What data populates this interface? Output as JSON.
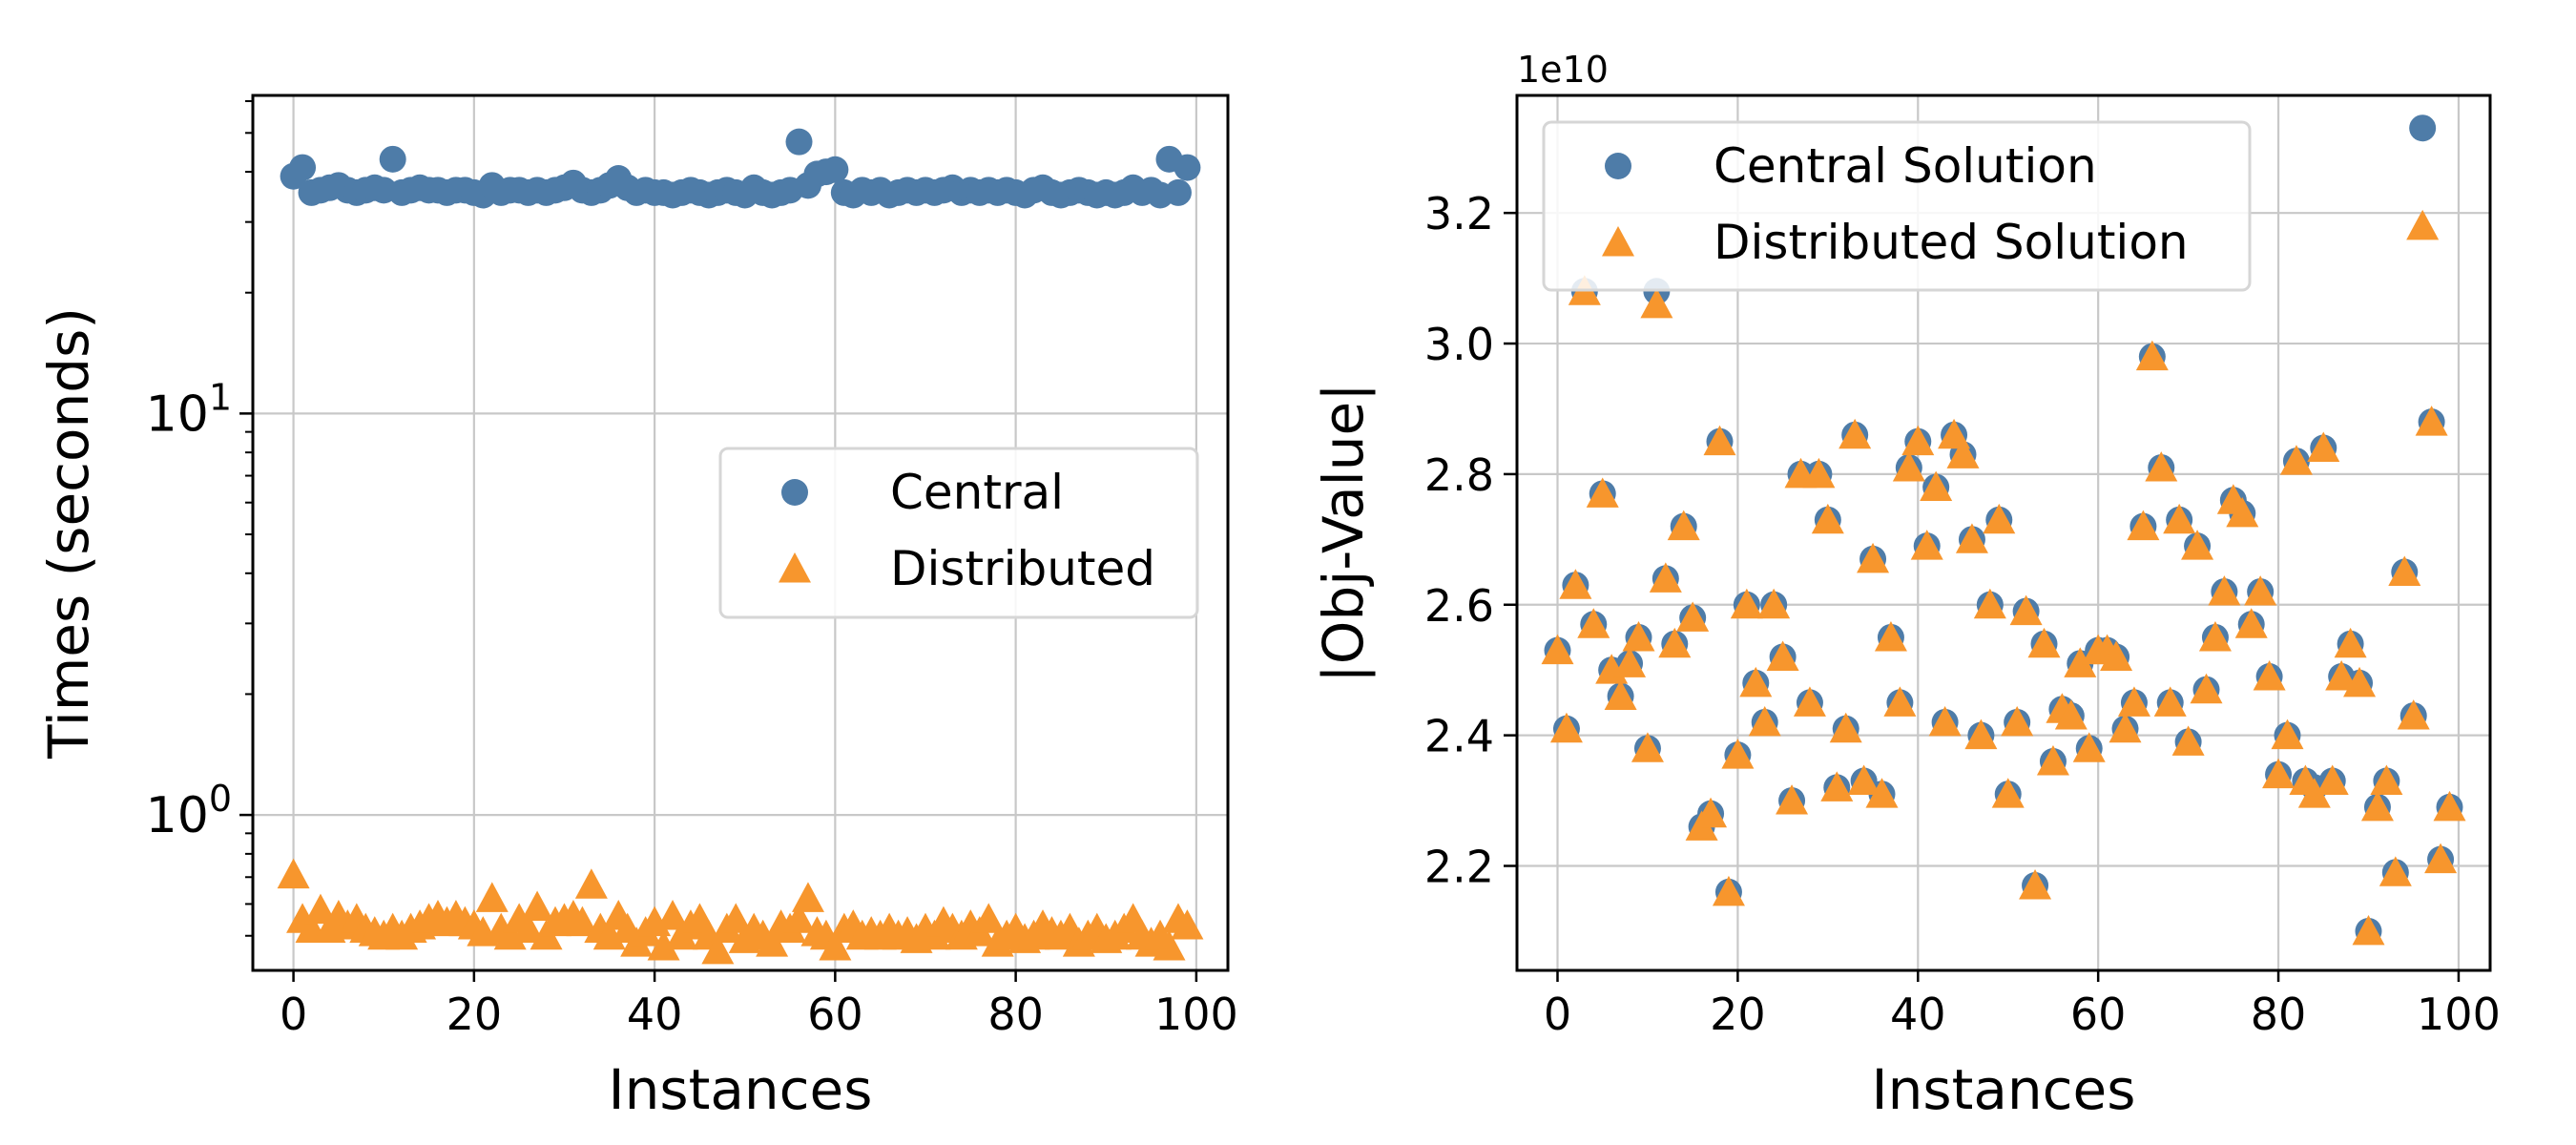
{
  "colors": {
    "central": "#4e7ca8",
    "distributed": "#f7962d"
  },
  "chart_data": [
    {
      "type": "scatter",
      "xlabel": "Instances",
      "ylabel": "Times (seconds)",
      "yscale": "log",
      "xlim": [
        -4.5,
        103.5
      ],
      "ylim": [
        0.41,
        62
      ],
      "xticks": [
        0,
        20,
        40,
        60,
        80,
        100
      ],
      "xtick_labels": [
        "0",
        "20",
        "40",
        "60",
        "80",
        "100"
      ],
      "yticks": [
        1,
        10
      ],
      "ytick_labels": [
        {
          "base": "10",
          "exp": "0"
        },
        {
          "base": "10",
          "exp": "1"
        }
      ],
      "grid": true,
      "legend_position": "center-right",
      "legend": [
        {
          "label": "Central",
          "marker": "circle",
          "color_key": "central"
        },
        {
          "label": "Distributed",
          "marker": "triangle",
          "color_key": "distributed"
        }
      ],
      "series": [
        {
          "name": "Central",
          "marker": "circle",
          "color_key": "central",
          "x": [
            0,
            1,
            2,
            3,
            4,
            5,
            6,
            7,
            8,
            9,
            10,
            11,
            12,
            13,
            14,
            15,
            16,
            17,
            18,
            19,
            20,
            21,
            22,
            23,
            24,
            25,
            26,
            27,
            28,
            29,
            30,
            31,
            32,
            33,
            34,
            35,
            36,
            37,
            38,
            39,
            40,
            41,
            42,
            43,
            44,
            45,
            46,
            47,
            48,
            49,
            50,
            51,
            52,
            53,
            54,
            55,
            56,
            57,
            58,
            59,
            60,
            61,
            62,
            63,
            64,
            65,
            66,
            67,
            68,
            69,
            70,
            71,
            72,
            73,
            74,
            75,
            76,
            77,
            78,
            79,
            80,
            81,
            82,
            83,
            84,
            85,
            86,
            87,
            88,
            89,
            90,
            91,
            92,
            93,
            94,
            95,
            96,
            97,
            98,
            99
          ],
          "y": [
            39,
            41,
            35.5,
            36,
            36.5,
            37,
            36,
            35.5,
            36,
            36.5,
            36,
            43,
            35.5,
            36,
            36.5,
            36,
            36,
            35.5,
            36,
            36,
            35.5,
            35,
            37,
            35.5,
            36,
            36,
            35.5,
            36,
            35.5,
            36,
            36.5,
            37.5,
            36,
            35.5,
            36,
            37,
            38.5,
            36.5,
            35.5,
            36,
            35.5,
            35.5,
            35,
            35.5,
            36,
            35.5,
            35,
            35.5,
            36,
            35.5,
            35,
            36.5,
            35.5,
            35,
            35.5,
            36,
            47.5,
            37,
            39.5,
            40,
            40.5,
            35.5,
            35,
            36,
            35.5,
            36,
            35,
            35.5,
            36,
            35.5,
            36,
            35.5,
            36,
            36.5,
            35.5,
            36,
            35.5,
            36,
            35.5,
            36,
            35.5,
            35,
            36,
            36.5,
            35.5,
            35,
            35.5,
            36,
            35.5,
            35,
            35.5,
            35,
            35.5,
            36.5,
            35.5,
            36,
            35,
            43,
            35.5,
            41
          ]
        },
        {
          "name": "Distributed",
          "marker": "triangle",
          "color_key": "distributed",
          "x": [
            0,
            1,
            2,
            3,
            4,
            5,
            6,
            7,
            8,
            9,
            10,
            11,
            12,
            13,
            14,
            15,
            16,
            17,
            18,
            19,
            20,
            21,
            22,
            23,
            24,
            25,
            26,
            27,
            28,
            29,
            30,
            31,
            32,
            33,
            34,
            35,
            36,
            37,
            38,
            39,
            40,
            41,
            42,
            43,
            44,
            45,
            46,
            47,
            48,
            49,
            50,
            51,
            52,
            53,
            54,
            55,
            56,
            57,
            58,
            59,
            60,
            61,
            62,
            63,
            64,
            65,
            66,
            67,
            68,
            69,
            70,
            71,
            72,
            73,
            74,
            75,
            76,
            77,
            78,
            79,
            80,
            81,
            82,
            83,
            84,
            85,
            86,
            87,
            88,
            89,
            90,
            91,
            92,
            93,
            94,
            95,
            96,
            97,
            98,
            99
          ],
          "y": [
            0.71,
            0.55,
            0.52,
            0.58,
            0.52,
            0.56,
            0.53,
            0.55,
            0.52,
            0.51,
            0.5,
            0.52,
            0.5,
            0.52,
            0.53,
            0.55,
            0.56,
            0.54,
            0.56,
            0.54,
            0.53,
            0.51,
            0.62,
            0.52,
            0.5,
            0.55,
            0.52,
            0.59,
            0.5,
            0.54,
            0.55,
            0.56,
            0.54,
            0.67,
            0.52,
            0.5,
            0.56,
            0.52,
            0.48,
            0.51,
            0.54,
            0.47,
            0.56,
            0.5,
            0.53,
            0.55,
            0.5,
            0.46,
            0.52,
            0.55,
            0.49,
            0.52,
            0.5,
            0.48,
            0.53,
            0.52,
            0.55,
            0.62,
            0.51,
            0.5,
            0.47,
            0.52,
            0.53,
            0.5,
            0.51,
            0.5,
            0.52,
            0.5,
            0.51,
            0.49,
            0.52,
            0.5,
            0.54,
            0.52,
            0.5,
            0.53,
            0.51,
            0.55,
            0.48,
            0.5,
            0.52,
            0.49,
            0.5,
            0.53,
            0.51,
            0.5,
            0.52,
            0.48,
            0.5,
            0.52,
            0.49,
            0.5,
            0.52,
            0.55,
            0.5,
            0.48,
            0.5,
            0.47,
            0.55,
            0.53
          ]
        }
      ]
    },
    {
      "type": "scatter",
      "xlabel": "Instances",
      "ylabel": "|Obj-Value|",
      "offset_text": "1e10",
      "xlim": [
        -4.5,
        103.5
      ],
      "ylim": [
        2.04,
        3.38
      ],
      "xticks": [
        0,
        20,
        40,
        60,
        80,
        100
      ],
      "xtick_labels": [
        "0",
        "20",
        "40",
        "60",
        "80",
        "100"
      ],
      "yticks": [
        2.2,
        2.4,
        2.6,
        2.8,
        3.0,
        3.2
      ],
      "ytick_labels": [
        "2.2",
        "2.4",
        "2.6",
        "2.8",
        "3.0",
        "3.2"
      ],
      "grid": true,
      "legend_position": "upper-left",
      "legend": [
        {
          "label": "Central Solution",
          "marker": "circle",
          "color_key": "central"
        },
        {
          "label": "Distributed Solution",
          "marker": "triangle",
          "color_key": "distributed"
        }
      ],
      "series": [
        {
          "name": "Central Solution",
          "marker": "circle",
          "color_key": "central",
          "x": [
            0,
            1,
            2,
            3,
            4,
            5,
            6,
            7,
            8,
            9,
            10,
            11,
            12,
            13,
            14,
            15,
            16,
            17,
            18,
            19,
            20,
            21,
            22,
            23,
            24,
            25,
            26,
            27,
            28,
            29,
            30,
            31,
            32,
            33,
            34,
            35,
            36,
            37,
            38,
            39,
            40,
            41,
            42,
            43,
            44,
            45,
            46,
            47,
            48,
            49,
            50,
            51,
            52,
            53,
            54,
            55,
            56,
            57,
            58,
            59,
            60,
            61,
            62,
            63,
            64,
            65,
            66,
            67,
            68,
            69,
            70,
            71,
            72,
            73,
            74,
            75,
            76,
            77,
            78,
            79,
            80,
            81,
            82,
            83,
            84,
            85,
            86,
            87,
            88,
            89,
            90,
            91,
            92,
            93,
            94,
            95,
            96,
            97,
            98,
            99
          ],
          "y": [
            2.53,
            2.41,
            2.63,
            3.08,
            2.57,
            2.77,
            2.5,
            2.46,
            2.51,
            2.55,
            2.38,
            3.08,
            2.64,
            2.54,
            2.72,
            2.58,
            2.26,
            2.28,
            2.85,
            2.16,
            2.37,
            2.6,
            2.48,
            2.42,
            2.6,
            2.52,
            2.3,
            2.8,
            2.45,
            2.8,
            2.73,
            2.32,
            2.41,
            2.86,
            2.33,
            2.67,
            2.31,
            2.55,
            2.45,
            2.81,
            2.85,
            2.69,
            2.78,
            2.42,
            2.86,
            2.83,
            2.7,
            2.4,
            2.6,
            2.73,
            2.31,
            2.42,
            2.59,
            2.17,
            2.54,
            2.36,
            2.44,
            2.43,
            2.51,
            2.38,
            2.53,
            2.53,
            2.52,
            2.41,
            2.45,
            2.72,
            2.98,
            2.81,
            2.45,
            2.73,
            2.39,
            2.69,
            2.47,
            2.55,
            2.62,
            2.76,
            2.74,
            2.57,
            2.62,
            2.49,
            2.34,
            2.4,
            2.82,
            2.33,
            2.32,
            2.84,
            2.33,
            2.49,
            2.54,
            2.48,
            2.1,
            2.29,
            2.33,
            2.19,
            2.65,
            2.43,
            3.33,
            2.88,
            2.21,
            2.29
          ]
        },
        {
          "name": "Distributed Solution",
          "marker": "triangle",
          "color_key": "distributed",
          "x": [
            0,
            1,
            2,
            3,
            4,
            5,
            6,
            7,
            8,
            9,
            10,
            11,
            12,
            13,
            14,
            15,
            16,
            17,
            18,
            19,
            20,
            21,
            22,
            23,
            24,
            25,
            26,
            27,
            28,
            29,
            30,
            31,
            32,
            33,
            34,
            35,
            36,
            37,
            38,
            39,
            40,
            41,
            42,
            43,
            44,
            45,
            46,
            47,
            48,
            49,
            50,
            51,
            52,
            53,
            54,
            55,
            56,
            57,
            58,
            59,
            60,
            61,
            62,
            63,
            64,
            65,
            66,
            67,
            68,
            69,
            70,
            71,
            72,
            73,
            74,
            75,
            76,
            77,
            78,
            79,
            80,
            81,
            82,
            83,
            84,
            85,
            86,
            87,
            88,
            89,
            90,
            91,
            92,
            93,
            94,
            95,
            96,
            97,
            98,
            99
          ],
          "y": [
            2.53,
            2.41,
            2.63,
            3.08,
            2.57,
            2.77,
            2.5,
            2.46,
            2.51,
            2.55,
            2.38,
            3.06,
            2.64,
            2.54,
            2.72,
            2.58,
            2.26,
            2.28,
            2.85,
            2.16,
            2.37,
            2.6,
            2.48,
            2.42,
            2.6,
            2.52,
            2.3,
            2.8,
            2.45,
            2.8,
            2.73,
            2.32,
            2.41,
            2.86,
            2.33,
            2.67,
            2.31,
            2.55,
            2.45,
            2.81,
            2.85,
            2.69,
            2.78,
            2.42,
            2.86,
            2.83,
            2.7,
            2.4,
            2.6,
            2.73,
            2.31,
            2.42,
            2.59,
            2.17,
            2.54,
            2.36,
            2.44,
            2.43,
            2.51,
            2.38,
            2.53,
            2.53,
            2.52,
            2.41,
            2.45,
            2.72,
            2.98,
            2.81,
            2.45,
            2.73,
            2.39,
            2.69,
            2.47,
            2.55,
            2.62,
            2.76,
            2.74,
            2.57,
            2.62,
            2.49,
            2.34,
            2.4,
            2.82,
            2.33,
            2.31,
            2.84,
            2.33,
            2.49,
            2.54,
            2.48,
            2.1,
            2.29,
            2.33,
            2.19,
            2.65,
            2.43,
            3.18,
            2.88,
            2.21,
            2.29
          ]
        }
      ]
    }
  ]
}
